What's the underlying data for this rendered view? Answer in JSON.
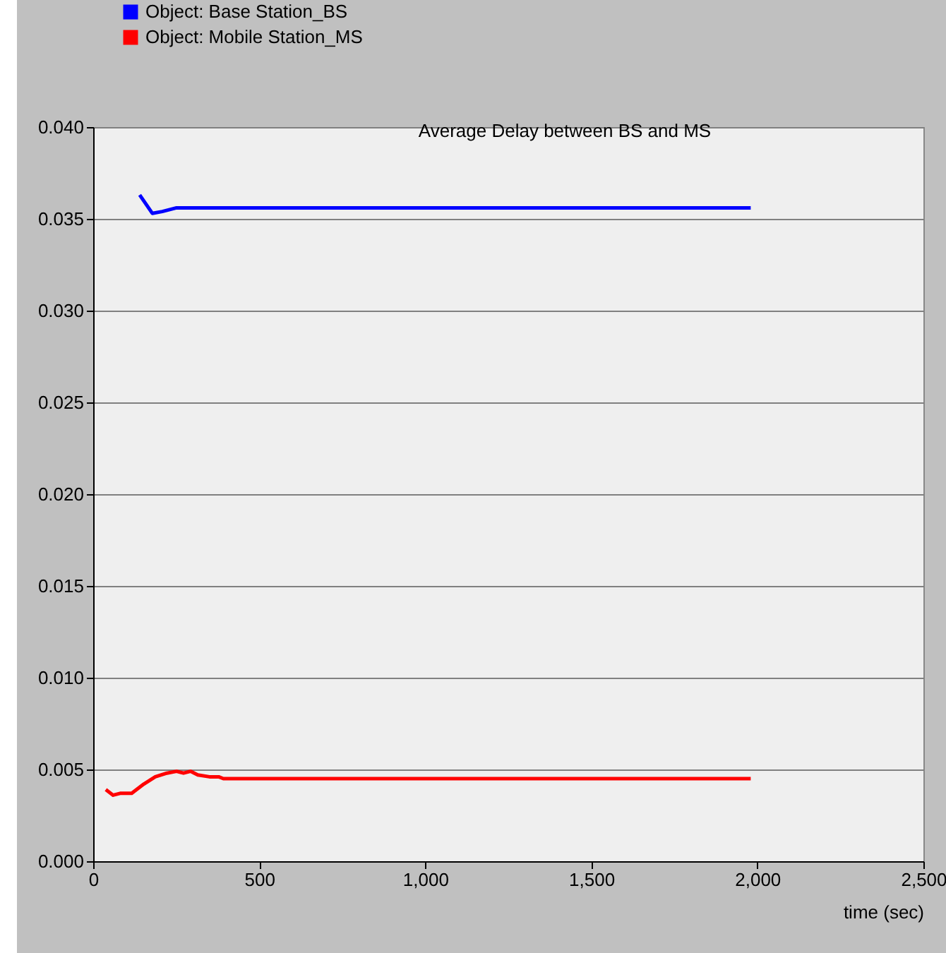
{
  "chart_data": {
    "type": "line",
    "title": "Average Delay between BS and MS",
    "xlabel": "time (sec)",
    "xlim": [
      0,
      2500
    ],
    "xticks": [
      0,
      500,
      {
        "value": 1000,
        "label": "1,000"
      },
      {
        "value": 1500,
        "label": "1,500"
      },
      {
        "value": 2000,
        "label": "2,000"
      },
      {
        "value": 2500,
        "label": "2,500"
      }
    ],
    "ylim": [
      0,
      0.04
    ],
    "yticks": [
      {
        "value": 0,
        "label": "0.000"
      },
      {
        "value": 0.005,
        "label": "0.005"
      },
      {
        "value": 0.01,
        "label": "0.010"
      },
      {
        "value": 0.015,
        "label": "0.015"
      },
      {
        "value": 0.02,
        "label": "0.020"
      },
      {
        "value": 0.025,
        "label": "0.025"
      },
      {
        "value": 0.03,
        "label": "0.030"
      },
      {
        "value": 0.035,
        "label": "0.035"
      },
      {
        "value": 0.04,
        "label": "0.040"
      }
    ],
    "grid": "y",
    "legend": "top left",
    "marker": "none",
    "line_style": "solid",
    "series": [
      {
        "name": "Object: Base Station_BS",
        "color": "#0000ff",
        "x": [
          140,
          178,
          208,
          251,
          1980
        ],
        "values": [
          0.0363,
          0.0353,
          0.0354,
          0.0356,
          0.0356
        ]
      },
      {
        "name": "Object: Mobile Station_MS",
        "color": "#ff0000",
        "x": [
          38,
          60,
          81,
          116,
          152,
          187,
          222,
          251,
          272,
          293,
          315,
          350,
          378,
          392,
          1980
        ],
        "values": [
          0.0039,
          0.0036,
          0.0037,
          0.0037,
          0.0042,
          0.0046,
          0.0048,
          0.0049,
          0.0048,
          0.0049,
          0.0047,
          0.0046,
          0.0046,
          0.0045,
          0.0045
        ]
      }
    ]
  }
}
